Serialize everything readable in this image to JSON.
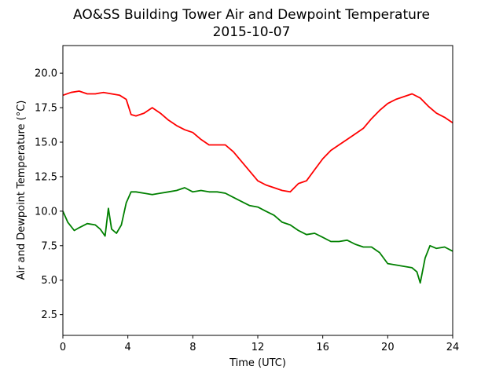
{
  "chart_data": {
    "type": "line",
    "title": "AO&SS Building Tower Air and Dewpoint Temperature",
    "subtitle": "2015-10-07",
    "xlabel": "Time (UTC)",
    "ylabel": "Air and Dewpoint Temperature (°C)",
    "xlim": [
      0,
      24
    ],
    "ylim": [
      1.0,
      22.0
    ],
    "xticks": [
      0,
      4,
      8,
      12,
      16,
      20,
      24
    ],
    "yticks": [
      2.5,
      5.0,
      7.5,
      10.0,
      12.5,
      15.0,
      17.5,
      20.0
    ],
    "grid": false,
    "legend": "none",
    "series": [
      {
        "color": "#ff0000",
        "x": [
          0,
          0.5,
          1.0,
          1.5,
          2.0,
          2.5,
          3.0,
          3.5,
          3.9,
          4.2,
          4.5,
          5.0,
          5.5,
          6.0,
          6.5,
          7.0,
          7.5,
          8.0,
          8.5,
          9.0,
          9.5,
          10.0,
          10.5,
          11.0,
          11.5,
          12.0,
          12.5,
          13.0,
          13.5,
          14.0,
          14.5,
          15.0,
          15.5,
          16.0,
          16.5,
          17.0,
          17.5,
          18.0,
          18.5,
          19.0,
          19.5,
          20.0,
          20.5,
          21.0,
          21.5,
          22.0,
          22.5,
          23.0,
          23.5,
          24.0
        ],
        "values": [
          18.4,
          18.6,
          18.7,
          18.5,
          18.5,
          18.6,
          18.5,
          18.4,
          18.1,
          17.0,
          16.9,
          17.1,
          17.5,
          17.1,
          16.6,
          16.2,
          15.9,
          15.7,
          15.2,
          14.8,
          14.8,
          14.8,
          14.3,
          13.6,
          12.9,
          12.2,
          11.9,
          11.7,
          11.5,
          11.4,
          12.0,
          12.2,
          13.0,
          13.8,
          14.4,
          14.8,
          15.2,
          15.6,
          16.0,
          16.7,
          17.3,
          17.8,
          18.1,
          18.3,
          18.5,
          18.2,
          17.6,
          17.1,
          16.8,
          16.4
        ]
      },
      {
        "color": "#008000",
        "x": [
          0,
          0.3,
          0.7,
          1.0,
          1.5,
          2.0,
          2.3,
          2.6,
          2.8,
          3.0,
          3.3,
          3.6,
          3.9,
          4.2,
          4.5,
          5.0,
          5.5,
          6.0,
          6.5,
          7.0,
          7.5,
          8.0,
          8.5,
          9.0,
          9.5,
          10.0,
          10.5,
          11.0,
          11.5,
          12.0,
          12.5,
          13.0,
          13.5,
          14.0,
          14.5,
          15.0,
          15.5,
          16.0,
          16.5,
          17.0,
          17.5,
          18.0,
          18.5,
          19.0,
          19.5,
          20.0,
          20.5,
          21.0,
          21.5,
          21.8,
          22.0,
          22.3,
          22.6,
          23.0,
          23.5,
          24.0
        ],
        "values": [
          10.0,
          9.2,
          8.6,
          8.8,
          9.1,
          9.0,
          8.7,
          8.2,
          10.2,
          8.7,
          8.4,
          9.0,
          10.6,
          11.4,
          11.4,
          11.3,
          11.2,
          11.3,
          11.4,
          11.5,
          11.7,
          11.4,
          11.5,
          11.4,
          11.4,
          11.3,
          11.0,
          10.7,
          10.4,
          10.3,
          10.0,
          9.7,
          9.2,
          9.0,
          8.6,
          8.3,
          8.4,
          8.1,
          7.8,
          7.8,
          7.9,
          7.6,
          7.4,
          7.4,
          7.0,
          6.2,
          6.1,
          6.0,
          5.9,
          5.6,
          4.8,
          6.6,
          7.5,
          7.3,
          7.4,
          7.1
        ]
      }
    ]
  }
}
